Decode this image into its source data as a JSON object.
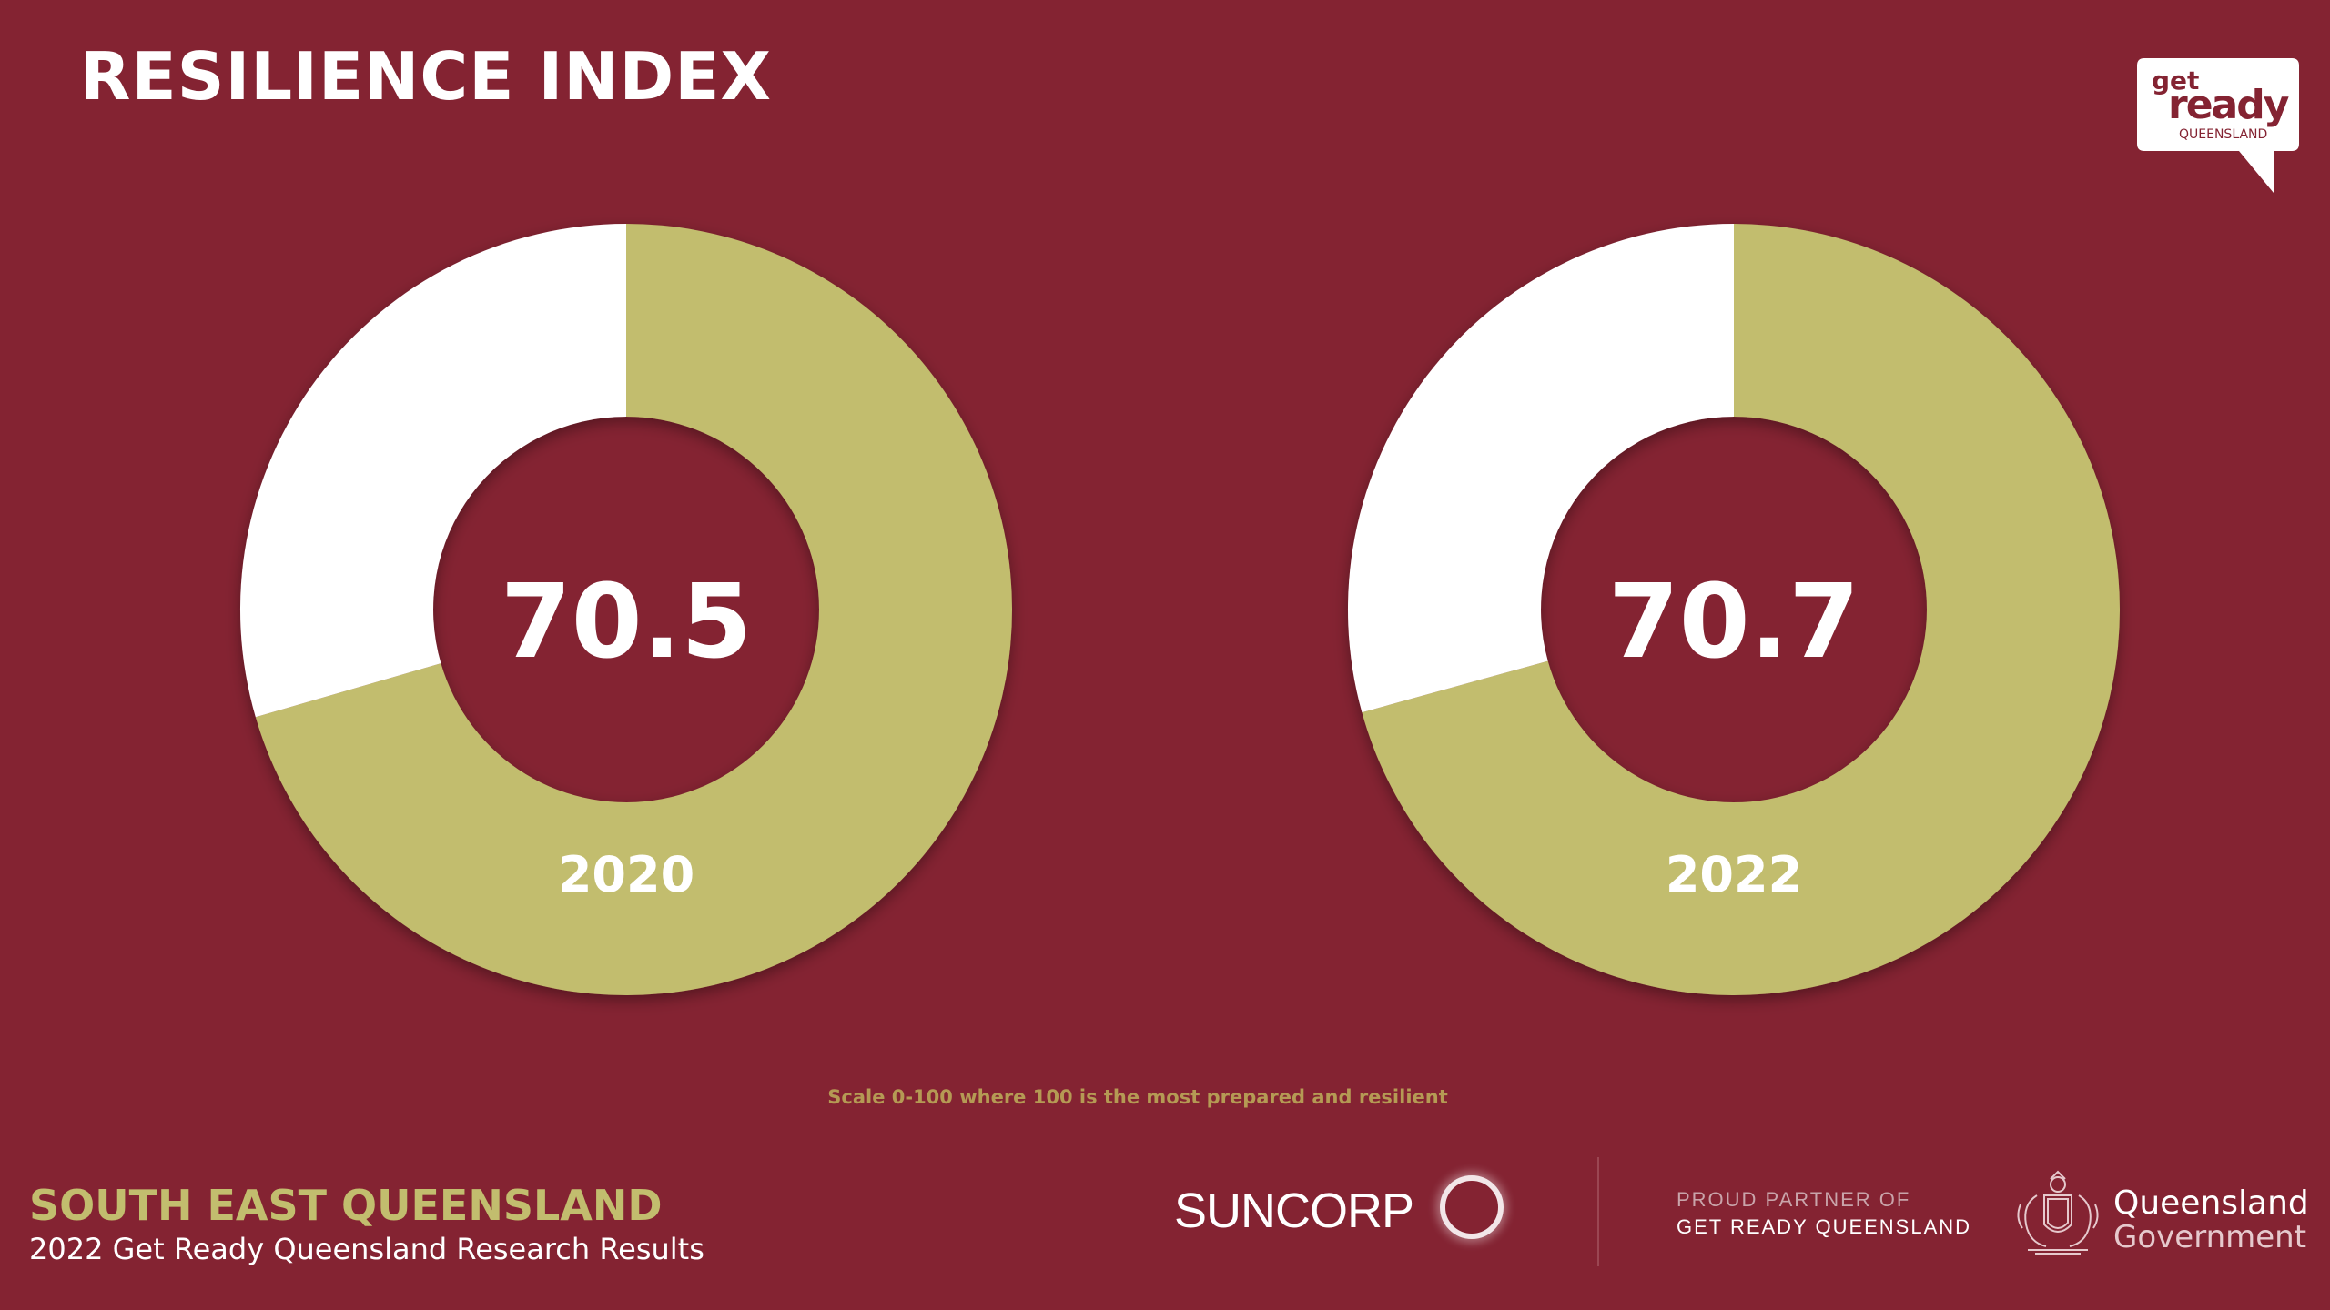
{
  "header": {
    "title": "RESILIENCE INDEX"
  },
  "colors": {
    "background": "#842332",
    "score": "#c2bd6e",
    "remainder": "#ffffff",
    "footer_region": "#c2bd6e"
  },
  "chart_data": {
    "type": "pie",
    "variant": "donut",
    "scale_min": 0,
    "scale_max": 100,
    "note": "Scale 0-100 where 100 is the most prepared and resilient",
    "charts": [
      {
        "category": "2020",
        "value": 70.5,
        "value_label": "70.5"
      },
      {
        "category": "2022",
        "value": 70.7,
        "value_label": "70.7"
      }
    ]
  },
  "footer": {
    "region": "SOUTH EAST QUEENSLAND",
    "subtitle": "2022 Get Ready Queensland Research Results",
    "sponsor": "SUNCORP",
    "partner_line1": "PROUD PARTNER OF",
    "partner_line2": "GET READY QUEENSLAND",
    "gov_line1": "Queensland",
    "gov_line2": "Government"
  },
  "logo": {
    "line1": "get",
    "line2": "ready",
    "line3": "QUEENSLAND"
  },
  "icons": {
    "logo": "speech-bubble-logo",
    "sponsor": "ring-icon",
    "government": "coat-of-arms-icon"
  }
}
